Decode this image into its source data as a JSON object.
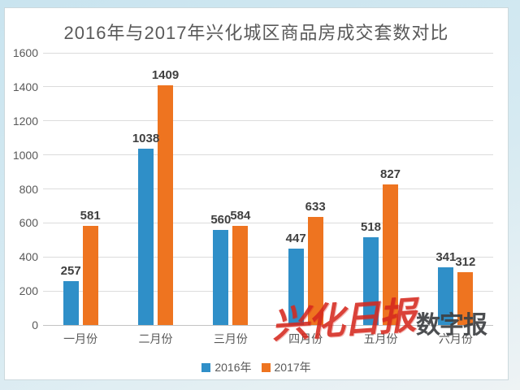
{
  "title": "2016年与2017年兴化城区商品房成交套数对比",
  "watermark": {
    "red_text": "兴化日报",
    "dark_text": "数字报",
    "red_color": "#d6281e",
    "dark_color": "#3d4043"
  },
  "colors": {
    "series_2016": "#2f8fc8",
    "series_2017": "#ee7420",
    "gridline": "#dcdcdc",
    "axis_text": "#595959",
    "value_text": "#3f3f3f",
    "panel_background": "#ffffff",
    "page_background": "#cfe7f1"
  },
  "chart_data": {
    "type": "bar",
    "title": "2016年与2017年兴化城区商品房成交套数对比",
    "categories": [
      "一月份",
      "二月份",
      "三月份",
      "四月份",
      "五月份",
      "六月份"
    ],
    "series": [
      {
        "name": "2016年",
        "color": "#2f8fc8",
        "values": [
          257,
          1038,
          560,
          447,
          518,
          341
        ]
      },
      {
        "name": "2017年",
        "color": "#ee7420",
        "values": [
          581,
          1409,
          584,
          633,
          827,
          312
        ]
      }
    ],
    "xlabel": "",
    "ylabel": "",
    "ylim": [
      0,
      1600
    ],
    "yticks": [
      0,
      200,
      400,
      600,
      800,
      1000,
      1200,
      1400,
      1600
    ],
    "grid": true,
    "legend_position": "bottom",
    "data_labels": true
  }
}
